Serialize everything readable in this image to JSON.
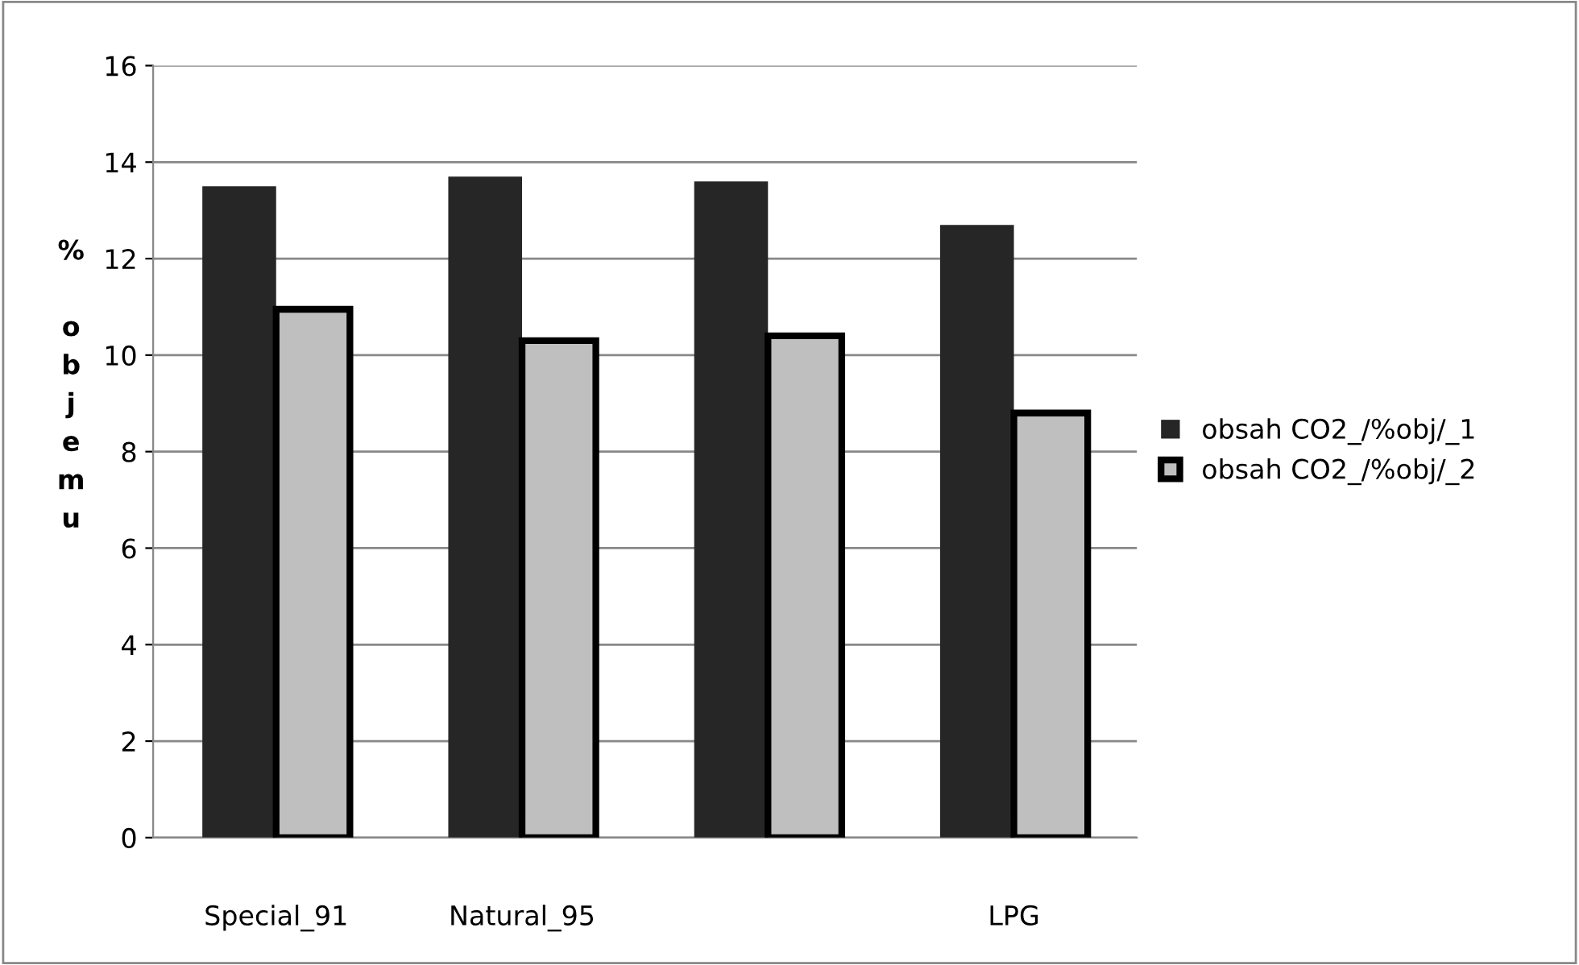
{
  "chart_data": {
    "type": "bar",
    "ylabel": "% objemu",
    "categories": [
      "Special_91",
      "Natural_95",
      null,
      "LPG"
    ],
    "series": [
      {
        "name": "obsah CO2_/%obj/_1",
        "color": "#262626",
        "values": [
          13.5,
          13.7,
          13.6,
          12.7
        ]
      },
      {
        "name": "obsah CO2_/%obj/_2",
        "color": "#bfbfbf",
        "values": [
          10.95,
          10.3,
          10.4,
          8.8
        ]
      }
    ],
    "ylim": [
      0,
      16
    ],
    "yticks": [
      0,
      2,
      4,
      6,
      8,
      10,
      12,
      14,
      16
    ],
    "grid": "y",
    "legend": "right"
  }
}
